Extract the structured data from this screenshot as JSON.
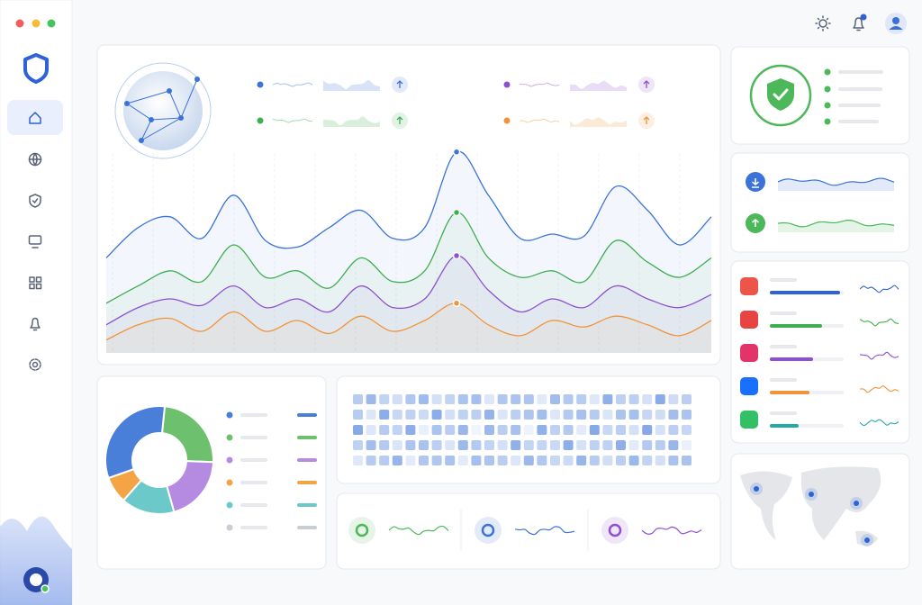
{
  "main_chart": {
    "type": "line",
    "series": [
      {
        "color": "#3b73d9",
        "values": [
          44,
          58,
          63,
          53,
          73,
          52,
          49,
          58,
          66,
          53,
          58,
          93,
          73,
          53,
          55,
          54,
          77,
          66,
          50,
          63
        ]
      },
      {
        "color": "#3fae4f",
        "values": [
          23,
          31,
          38,
          33,
          50,
          35,
          38,
          30,
          44,
          33,
          38,
          65,
          44,
          35,
          38,
          33,
          52,
          42,
          35,
          44
        ]
      },
      {
        "color": "#8e4fd0",
        "values": [
          13,
          21,
          25,
          22,
          31,
          21,
          25,
          19,
          31,
          21,
          25,
          45,
          29,
          19,
          25,
          21,
          31,
          25,
          21,
          27
        ]
      },
      {
        "color": "#f0943a",
        "values": [
          6,
          13,
          16,
          10,
          19,
          10,
          15,
          9,
          17,
          10,
          15,
          23,
          13,
          8,
          15,
          12,
          17,
          13,
          8,
          15
        ]
      }
    ]
  },
  "donut": {
    "type": "pie",
    "values": [
      24,
      20,
      16,
      8,
      32
    ],
    "colors": [
      "#6cc06e",
      "#b48be0",
      "#6cc9c9",
      "#f5a445",
      "#4a7fd9"
    ]
  }
}
